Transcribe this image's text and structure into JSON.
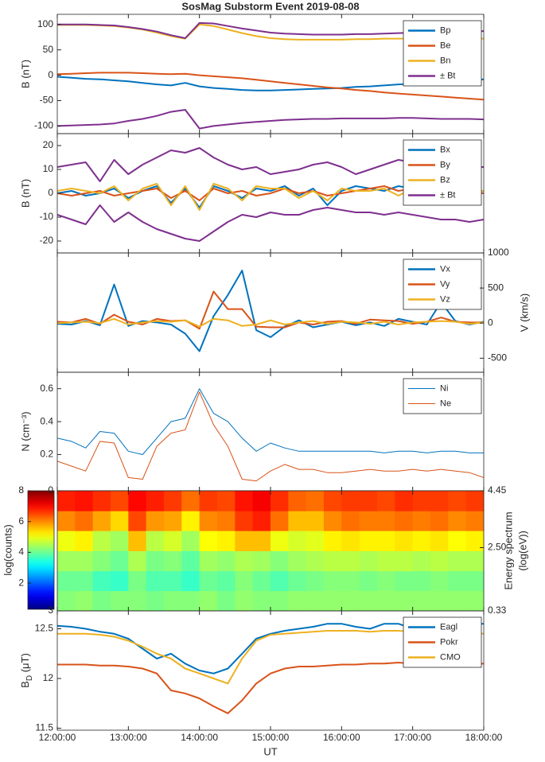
{
  "chart_data": [
    {
      "type": "line",
      "title": "SosMag Substorm Event 2019-08-08",
      "ylabel": "B (nT)",
      "yaxis_side": "left",
      "legend": "upper right",
      "xlim": [
        12,
        18
      ],
      "ylim": [
        -115,
        120
      ],
      "yticks": [
        -100,
        -50,
        0,
        50,
        100
      ],
      "x": [
        12,
        12.2,
        12.4,
        12.6,
        12.8,
        13,
        13.2,
        13.4,
        13.6,
        13.8,
        14,
        14.2,
        14.4,
        14.6,
        14.8,
        15,
        15.2,
        15.4,
        15.6,
        15.8,
        16,
        16.2,
        16.4,
        16.6,
        16.8,
        17,
        17.2,
        17.4,
        17.6,
        17.8,
        18
      ],
      "series": [
        {
          "name": "Bp",
          "color": "#0072bd",
          "values": [
            -3,
            -5,
            -7,
            -8,
            -10,
            -12,
            -15,
            -18,
            -20,
            -15,
            -22,
            -25,
            -27,
            -29,
            -30,
            -30,
            -29,
            -28,
            -27,
            -26,
            -25,
            -23,
            -22,
            -20,
            -18,
            -17,
            -15,
            -13,
            -12,
            -10,
            -8
          ]
        },
        {
          "name": "Be",
          "color": "#d95319",
          "values": [
            2,
            3,
            4,
            5,
            5,
            5,
            4,
            3,
            2,
            3,
            0,
            -2,
            -4,
            -6,
            -9,
            -12,
            -15,
            -18,
            -21,
            -24,
            -26,
            -29,
            -31,
            -34,
            -36,
            -38,
            -40,
            -42,
            -44,
            -46,
            -48
          ]
        },
        {
          "name": "Bn",
          "color": "#edb120",
          "values": [
            99,
            99,
            99,
            98,
            97,
            94,
            90,
            84,
            77,
            72,
            100,
            97,
            90,
            83,
            77,
            73,
            71,
            70,
            70,
            70,
            70,
            71,
            71,
            72,
            72,
            73,
            73,
            73,
            73,
            73,
            72
          ]
        },
        {
          "name": "± Bt",
          "color": "#7e2f8e",
          "values": [
            100,
            100,
            100,
            99,
            98,
            95,
            91,
            86,
            79,
            73,
            103,
            102,
            97,
            92,
            88,
            84,
            82,
            81,
            80,
            80,
            80,
            81,
            81,
            82,
            83,
            84,
            85,
            85,
            86,
            86,
            87
          ],
          "negative_values": [
            -100,
            -99,
            -98,
            -97,
            -95,
            -90,
            -86,
            -80,
            -72,
            -68,
            -105,
            -100,
            -97,
            -94,
            -92,
            -90,
            -88,
            -87,
            -86,
            -86,
            -85,
            -85,
            -85,
            -85,
            -84,
            -84,
            -85,
            -86,
            -86,
            -86,
            -87
          ]
        }
      ]
    },
    {
      "type": "line",
      "ylabel": "B (nT)",
      "yaxis_side": "left",
      "legend": "upper right",
      "xlim": [
        12,
        18
      ],
      "ylim": [
        -25,
        25
      ],
      "yticks": [
        -20,
        -10,
        0,
        10,
        20
      ],
      "x": [
        12,
        12.2,
        12.4,
        12.6,
        12.8,
        13,
        13.2,
        13.4,
        13.6,
        13.8,
        14,
        14.2,
        14.4,
        14.6,
        14.8,
        15,
        15.2,
        15.4,
        15.6,
        15.8,
        16,
        16.2,
        16.4,
        16.6,
        16.8,
        17,
        17.2,
        17.4,
        17.6,
        17.8,
        18
      ],
      "series": [
        {
          "name": "Bx",
          "color": "#0072bd",
          "values": [
            0,
            1,
            -1,
            0,
            2,
            -2,
            1,
            3,
            -4,
            2,
            -6,
            3,
            1,
            -2,
            2,
            1,
            3,
            -1,
            2,
            -5,
            1,
            3,
            2,
            1,
            3,
            2,
            1,
            5,
            2,
            1,
            0
          ]
        },
        {
          "name": "By",
          "color": "#d95319",
          "values": [
            0,
            -1,
            0,
            1,
            -1,
            0,
            1,
            2,
            -2,
            1,
            -3,
            2,
            0,
            1,
            -1,
            0,
            2,
            0,
            1,
            -1,
            0,
            1,
            2,
            3,
            1,
            2,
            1,
            -2,
            1,
            0,
            0
          ]
        },
        {
          "name": "Bz",
          "color": "#edb120",
          "values": [
            1,
            2,
            1,
            0,
            3,
            -3,
            2,
            4,
            -5,
            3,
            -7,
            4,
            2,
            -3,
            3,
            2,
            2,
            -2,
            1,
            -3,
            2,
            1,
            1,
            2,
            -1,
            2,
            1,
            -1,
            0,
            1,
            1
          ]
        },
        {
          "name": "± Bt",
          "color": "#7e2f8e",
          "values": [
            11,
            12,
            13,
            5,
            14,
            8,
            12,
            15,
            18,
            17,
            19,
            15,
            12,
            10,
            11,
            8,
            9,
            10,
            12,
            13,
            11,
            8,
            10,
            12,
            14,
            13,
            12,
            11,
            10,
            11,
            11
          ],
          "negative_values": [
            -9,
            -11,
            -13,
            -5,
            -12,
            -8,
            -12,
            -15,
            -17,
            -19,
            -20,
            -16,
            -12,
            -9,
            -10,
            -8,
            -9,
            -9,
            -7,
            -6,
            -7,
            -8,
            -8,
            -9,
            -8,
            -9,
            -10,
            -11,
            -11,
            -12,
            -11
          ]
        }
      ]
    },
    {
      "type": "line",
      "ylabel": "V (km/s)",
      "yaxis_side": "right",
      "legend": "upper right",
      "xlim": [
        12,
        18
      ],
      "ylim": [
        -700,
        1000
      ],
      "yticks": [
        -500,
        0,
        500,
        1000
      ],
      "x": [
        12,
        12.2,
        12.4,
        12.6,
        12.8,
        13,
        13.2,
        13.4,
        13.6,
        13.8,
        14,
        14.2,
        14.4,
        14.6,
        14.8,
        15,
        15.2,
        15.4,
        15.6,
        15.8,
        16,
        16.2,
        16.4,
        16.6,
        16.8,
        17,
        17.2,
        17.4,
        17.6,
        17.8,
        18
      ],
      "series": [
        {
          "name": "Vx",
          "color": "#0072bd",
          "values": [
            -10,
            -20,
            30,
            -30,
            550,
            -40,
            30,
            10,
            -20,
            -150,
            -400,
            100,
            400,
            750,
            -100,
            -200,
            -50,
            40,
            -60,
            -20,
            20,
            -30,
            10,
            -40,
            60,
            20,
            -20,
            300,
            30,
            -20,
            20
          ]
        },
        {
          "name": "Vy",
          "color": "#d95319",
          "values": [
            20,
            10,
            60,
            -10,
            120,
            20,
            -20,
            60,
            30,
            40,
            -80,
            450,
            200,
            200,
            -50,
            -60,
            -60,
            10,
            -20,
            20,
            30,
            -10,
            50,
            40,
            30,
            -10,
            20,
            80,
            20,
            10,
            10
          ]
        },
        {
          "name": "Vz",
          "color": "#edb120",
          "values": [
            0,
            10,
            20,
            0,
            60,
            -20,
            10,
            30,
            20,
            40,
            -50,
            60,
            40,
            -40,
            -20,
            40,
            -20,
            10,
            30,
            -10,
            20,
            10,
            -10,
            20,
            -20,
            10,
            20,
            30,
            20,
            -10,
            10
          ]
        }
      ]
    },
    {
      "type": "line",
      "ylabel": "N (cm⁻³)",
      "yaxis_side": "left",
      "legend": "upper right",
      "line_width": 1,
      "xlim": [
        12,
        18
      ],
      "ylim": [
        -0.02,
        0.7
      ],
      "yticks": [
        0.2,
        0.4,
        0.6
      ],
      "x": [
        12,
        12.2,
        12.4,
        12.6,
        12.8,
        13,
        13.2,
        13.4,
        13.6,
        13.8,
        14,
        14.2,
        14.4,
        14.6,
        14.8,
        15,
        15.2,
        15.4,
        15.6,
        15.8,
        16,
        16.2,
        16.4,
        16.6,
        16.8,
        17,
        17.2,
        17.4,
        17.6,
        17.8,
        18
      ],
      "series": [
        {
          "name": "Ni",
          "color": "#0072bd",
          "values": [
            0.3,
            0.28,
            0.24,
            0.34,
            0.33,
            0.22,
            0.2,
            0.3,
            0.4,
            0.42,
            0.6,
            0.45,
            0.4,
            0.3,
            0.22,
            0.27,
            0.24,
            0.22,
            0.22,
            0.22,
            0.22,
            0.22,
            0.22,
            0.21,
            0.22,
            0.22,
            0.21,
            0.22,
            0.22,
            0.21,
            0.21
          ]
        },
        {
          "name": "Ne",
          "color": "#d95319",
          "values": [
            0.16,
            0.13,
            0.1,
            0.28,
            0.27,
            0.06,
            0.05,
            0.25,
            0.33,
            0.35,
            0.58,
            0.38,
            0.25,
            0.05,
            0.04,
            0.1,
            0.14,
            0.11,
            0.11,
            0.09,
            0.09,
            0.1,
            0.11,
            0.1,
            0.1,
            0.11,
            0.1,
            0.11,
            0.1,
            0.09,
            0.06
          ]
        }
      ]
    },
    {
      "type": "heatmap",
      "y2label": [
        "Energy spectrum",
        "(log(eV))"
      ],
      "xlim": [
        12,
        18
      ],
      "ylim": [
        3,
        0
      ],
      "yticks": [
        0,
        3
      ],
      "y2lim": [
        0.33,
        4.45
      ],
      "y2ticks": [
        0.33,
        {
          "value": 2.5,
          "label": "2.50"
        },
        4.45
      ],
      "colorbar": {
        "label": "log(counts)",
        "lim": [
          0.3,
          8
        ],
        "ticks": [
          2,
          4,
          6,
          8
        ]
      },
      "x": [
        12,
        12.25,
        12.5,
        12.75,
        13,
        13.25,
        13.5,
        13.75,
        14,
        14.25,
        14.5,
        14.75,
        15,
        15.25,
        15.5,
        15.75,
        16,
        16.25,
        16.5,
        16.75,
        17,
        17.25,
        17.5,
        17.75,
        18
      ],
      "y": [
        0.33,
        1.02,
        1.7,
        2.39,
        3.08,
        3.76,
        4.45
      ],
      "z": [
        [
          4.2,
          4.3,
          4.1,
          4.2,
          4.2,
          4.1,
          4.2,
          4.2,
          4.3,
          4.1,
          4.3,
          4.2,
          4.2,
          4.3,
          4.3,
          4.3,
          4.3,
          4.3,
          4.3,
          4.3,
          4.3,
          4.3,
          4.3,
          4.3
        ],
        [
          4.0,
          4.0,
          3.7,
          3.6,
          4.1,
          3.8,
          3.8,
          3.6,
          4.0,
          3.9,
          4.2,
          4.0,
          3.8,
          4.0,
          4.1,
          4.2,
          4.2,
          4.1,
          4.2,
          4.1,
          4.1,
          4.2,
          4.1,
          4.1
        ],
        [
          4.4,
          4.4,
          4.2,
          4.0,
          4.5,
          4.1,
          4.2,
          3.9,
          4.4,
          4.3,
          4.5,
          4.4,
          4.2,
          4.4,
          4.5,
          4.6,
          4.6,
          4.5,
          4.6,
          4.6,
          4.5,
          4.6,
          4.5,
          4.5
        ],
        [
          5.0,
          5.2,
          4.6,
          4.4,
          5.6,
          4.6,
          4.8,
          4.4,
          5.1,
          5.2,
          5.6,
          5.6,
          5.0,
          4.8,
          4.9,
          5.2,
          5.3,
          5.2,
          5.2,
          5.3,
          5.2,
          5.3,
          5.1,
          5.2
        ],
        [
          6.0,
          6.2,
          5.8,
          5.4,
          6.5,
          5.9,
          5.8,
          5.2,
          6.0,
          6.1,
          6.6,
          6.8,
          6.2,
          5.6,
          5.6,
          6.0,
          6.2,
          6.1,
          6.1,
          6.2,
          6.1,
          6.2,
          6.0,
          6.1
        ],
        [
          6.8,
          6.9,
          6.7,
          6.5,
          7.0,
          6.8,
          6.6,
          6.2,
          6.6,
          6.5,
          6.9,
          7.1,
          6.7,
          6.3,
          6.2,
          6.5,
          6.6,
          6.6,
          6.5,
          6.7,
          6.6,
          6.6,
          6.5,
          6.6
        ]
      ]
    },
    {
      "type": "line",
      "ylabel": {
        "base": "B",
        "subscript": "D",
        "unit": " (μT)"
      },
      "yaxis_side": "left",
      "legend": "upper right",
      "xlabel": "UT",
      "xlim": [
        12,
        18
      ],
      "ylim": [
        11.48,
        12.68
      ],
      "yticks": [
        11.5,
        12,
        12.5
      ],
      "xticks": [
        {
          "value": 12,
          "label": "12:00:00"
        },
        {
          "value": 13,
          "label": "13:00:00"
        },
        {
          "value": 14,
          "label": "14:00:00"
        },
        {
          "value": 15,
          "label": "15:00:00"
        },
        {
          "value": 16,
          "label": "16:00:00"
        },
        {
          "value": 17,
          "label": "17:00:00"
        },
        {
          "value": 18,
          "label": "18:00:00"
        }
      ],
      "x": [
        12,
        12.2,
        12.4,
        12.6,
        12.8,
        13,
        13.2,
        13.4,
        13.6,
        13.8,
        14,
        14.2,
        14.4,
        14.6,
        14.8,
        15,
        15.2,
        15.4,
        15.6,
        15.8,
        16,
        16.2,
        16.4,
        16.6,
        16.8,
        17,
        17.2,
        17.4,
        17.6,
        17.8,
        18
      ],
      "series": [
        {
          "name": "Eagl",
          "color": "#0072bd",
          "values": [
            12.53,
            12.52,
            12.5,
            12.47,
            12.45,
            12.4,
            12.3,
            12.2,
            12.25,
            12.15,
            12.08,
            12.05,
            12.1,
            12.25,
            12.4,
            12.45,
            12.48,
            12.5,
            12.52,
            12.55,
            12.55,
            12.52,
            12.5,
            12.55,
            12.55,
            12.5,
            12.55,
            12.55,
            12.53,
            12.55,
            12.55
          ]
        },
        {
          "name": "Pokr",
          "color": "#d95319",
          "values": [
            12.14,
            12.14,
            12.14,
            12.13,
            12.13,
            12.12,
            12.1,
            12.05,
            11.88,
            11.85,
            11.8,
            11.72,
            11.65,
            11.78,
            11.95,
            12.05,
            12.1,
            12.12,
            12.12,
            12.13,
            12.14,
            12.14,
            12.15,
            12.15,
            12.16,
            12.15,
            12.15,
            12.13,
            12.12,
            12.14,
            12.15
          ]
        },
        {
          "name": "CMO",
          "color": "#edb120",
          "values": [
            12.45,
            12.45,
            12.45,
            12.44,
            12.42,
            12.38,
            12.32,
            12.25,
            12.2,
            12.1,
            12.05,
            12.0,
            11.95,
            12.2,
            12.38,
            12.44,
            12.45,
            12.46,
            12.47,
            12.48,
            12.48,
            12.48,
            12.47,
            12.48,
            12.48,
            12.47,
            12.48,
            12.48,
            12.47,
            12.46,
            12.45
          ]
        }
      ]
    }
  ]
}
